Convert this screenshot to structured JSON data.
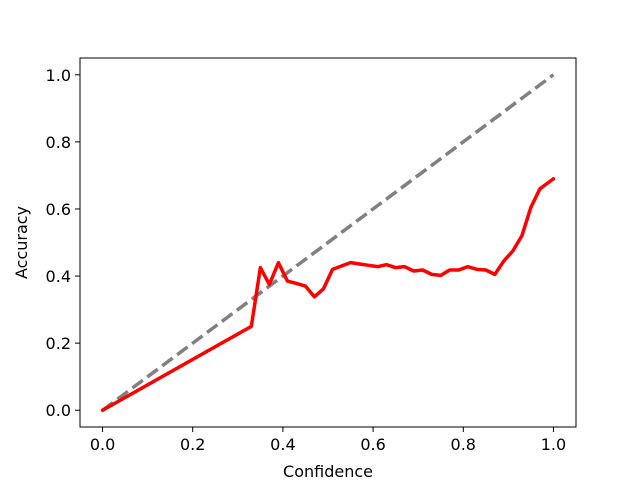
{
  "chart_data": {
    "type": "line",
    "title": "",
    "xlabel": "Confidence",
    "ylabel": "Accuracy",
    "xlim": [
      -0.05,
      1.05
    ],
    "ylim": [
      -0.05,
      1.05
    ],
    "xticks": [
      0.0,
      0.2,
      0.4,
      0.6,
      0.8,
      1.0
    ],
    "yticks": [
      0.0,
      0.2,
      0.4,
      0.6,
      0.8,
      1.0
    ],
    "xtick_labels": [
      "0.0",
      "0.2",
      "0.4",
      "0.6",
      "0.8",
      "1.0"
    ],
    "ytick_labels": [
      "0.0",
      "0.2",
      "0.4",
      "0.6",
      "0.8",
      "1.0"
    ],
    "grid": false,
    "legend": "none",
    "series": [
      {
        "style": "dashed",
        "color": "#808080",
        "x": [
          0.0,
          1.0
        ],
        "y": [
          0.0,
          1.0
        ]
      },
      {
        "style": "solid",
        "color": "#ff0000",
        "x": [
          0.0,
          0.33,
          0.35,
          0.37,
          0.39,
          0.41,
          0.43,
          0.45,
          0.47,
          0.49,
          0.51,
          0.53,
          0.55,
          0.57,
          0.59,
          0.61,
          0.63,
          0.65,
          0.67,
          0.69,
          0.71,
          0.73,
          0.75,
          0.77,
          0.79,
          0.81,
          0.83,
          0.85,
          0.87,
          0.89,
          0.91,
          0.93,
          0.95,
          0.97,
          0.99,
          1.0
        ],
        "y": [
          0.0,
          0.25,
          0.425,
          0.375,
          0.44,
          0.385,
          0.378,
          0.37,
          0.338,
          0.362,
          0.42,
          0.43,
          0.44,
          0.436,
          0.432,
          0.428,
          0.434,
          0.425,
          0.428,
          0.415,
          0.418,
          0.405,
          0.402,
          0.418,
          0.418,
          0.428,
          0.42,
          0.418,
          0.405,
          0.445,
          0.475,
          0.52,
          0.605,
          0.66,
          0.68,
          0.69
        ]
      }
    ]
  }
}
